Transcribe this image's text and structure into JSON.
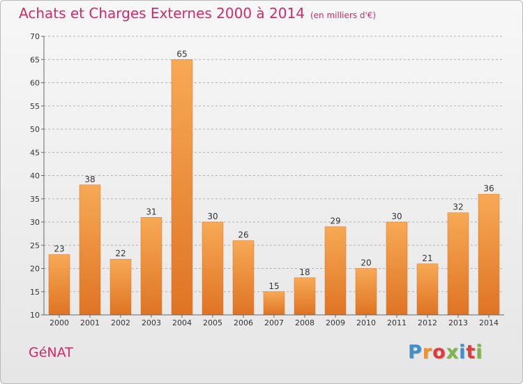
{
  "chart_data": {
    "type": "bar",
    "title": "Achats et Charges Externes 2000 à 2014",
    "subtitle": "(en milliers d'€)",
    "categories": [
      "2000",
      "2001",
      "2002",
      "2003",
      "2004",
      "2005",
      "2006",
      "2007",
      "2008",
      "2009",
      "2010",
      "2011",
      "2012",
      "2013",
      "2014"
    ],
    "values": [
      23,
      38,
      22,
      31,
      65,
      30,
      26,
      15,
      18,
      29,
      20,
      30,
      21,
      32,
      36
    ],
    "ylim": [
      10,
      70
    ],
    "yticks": [
      10,
      15,
      20,
      25,
      30,
      35,
      40,
      45,
      50,
      55,
      60,
      65,
      70
    ],
    "grid": true,
    "bar_color": "#f0922f",
    "bar_color_dark": "#de7424",
    "bar_color_light": "#f7a955",
    "grid_color": "#b0b0b0"
  },
  "footer": {
    "commune": "GéNAT",
    "brand": "Proxiti",
    "brand_colors": [
      "#3f8fcb",
      "#f0922f",
      "#e03b3b",
      "#7ab648",
      "#3f8fcb",
      "#e03b3b",
      "#7ab648"
    ]
  },
  "colors": {
    "title": "#d22a6a",
    "axis_text": "#333333"
  }
}
